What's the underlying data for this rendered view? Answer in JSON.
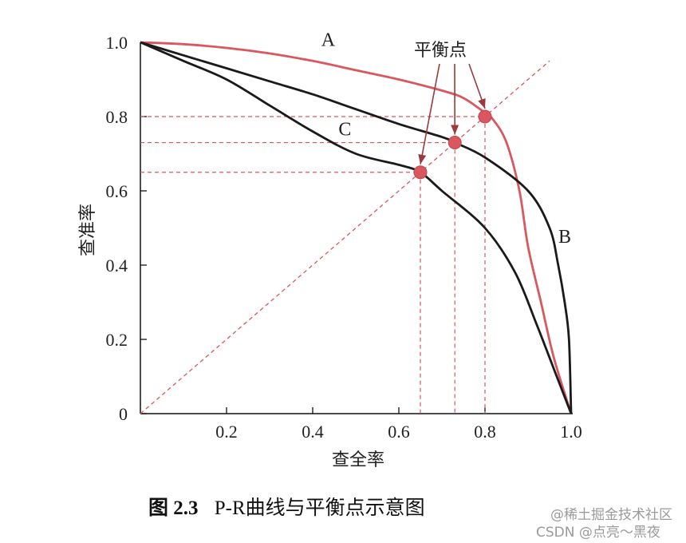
{
  "chart_data": {
    "type": "line",
    "xlabel": "查全率",
    "ylabel": "查准率",
    "xlim": [
      0,
      1
    ],
    "ylim": [
      0,
      1
    ],
    "x_ticks": [
      "0.2",
      "0.4",
      "0.6",
      "0.8",
      "1.0"
    ],
    "y_ticks": [
      "0",
      "0.2",
      "0.4",
      "0.6",
      "0.8",
      "1.0"
    ],
    "series": [
      {
        "name": "A",
        "color": "#d9575f",
        "points": [
          [
            0,
            1.0
          ],
          [
            0.1,
            0.995
          ],
          [
            0.2,
            0.985
          ],
          [
            0.3,
            0.97
          ],
          [
            0.4,
            0.95
          ],
          [
            0.5,
            0.925
          ],
          [
            0.6,
            0.9
          ],
          [
            0.7,
            0.87
          ],
          [
            0.75,
            0.85
          ],
          [
            0.8,
            0.81
          ],
          [
            0.82,
            0.79
          ],
          [
            0.85,
            0.73
          ],
          [
            0.88,
            0.6
          ],
          [
            0.9,
            0.45
          ],
          [
            0.93,
            0.3
          ],
          [
            0.96,
            0.15
          ],
          [
            1.0,
            0.0
          ]
        ]
      },
      {
        "name": "B",
        "color": "#1a1a1a",
        "points": [
          [
            0,
            1.0
          ],
          [
            0.1,
            0.965
          ],
          [
            0.2,
            0.93
          ],
          [
            0.3,
            0.895
          ],
          [
            0.4,
            0.86
          ],
          [
            0.5,
            0.82
          ],
          [
            0.6,
            0.78
          ],
          [
            0.7,
            0.745
          ],
          [
            0.73,
            0.73
          ],
          [
            0.8,
            0.69
          ],
          [
            0.9,
            0.6
          ],
          [
            0.95,
            0.5
          ],
          [
            0.97,
            0.4
          ],
          [
            0.985,
            0.3
          ],
          [
            0.995,
            0.2
          ],
          [
            1.0,
            0.0
          ]
        ]
      },
      {
        "name": "C",
        "color": "#1a1a1a",
        "points": [
          [
            0,
            1.0
          ],
          [
            0.1,
            0.95
          ],
          [
            0.2,
            0.9
          ],
          [
            0.3,
            0.83
          ],
          [
            0.4,
            0.76
          ],
          [
            0.5,
            0.7
          ],
          [
            0.6,
            0.67
          ],
          [
            0.65,
            0.65
          ],
          [
            0.7,
            0.6
          ],
          [
            0.8,
            0.5
          ],
          [
            0.87,
            0.38
          ],
          [
            0.92,
            0.24
          ],
          [
            0.96,
            0.12
          ],
          [
            1.0,
            0.0
          ]
        ]
      }
    ],
    "equality_line": [
      [
        0,
        0
      ],
      [
        0.95,
        0.95
      ]
    ],
    "break_even_points": [
      {
        "x": 0.65,
        "y": 0.65
      },
      {
        "x": 0.73,
        "y": 0.73
      },
      {
        "x": 0.8,
        "y": 0.8
      }
    ],
    "annotation": "平衡点",
    "curve_labels": [
      {
        "text": "A",
        "x": 0.42,
        "y": 0.99
      },
      {
        "text": "B",
        "x": 1.0,
        "y": 0.46
      },
      {
        "text": "C",
        "x": 0.46,
        "y": 0.75
      }
    ],
    "caption_bold": "图 2.3",
    "caption_rest": "P-R曲线与平衡点示意图"
  },
  "watermark": {
    "line1": "@稀土掘金技术社区",
    "line2": "CSDN @点亮～黑夜"
  }
}
